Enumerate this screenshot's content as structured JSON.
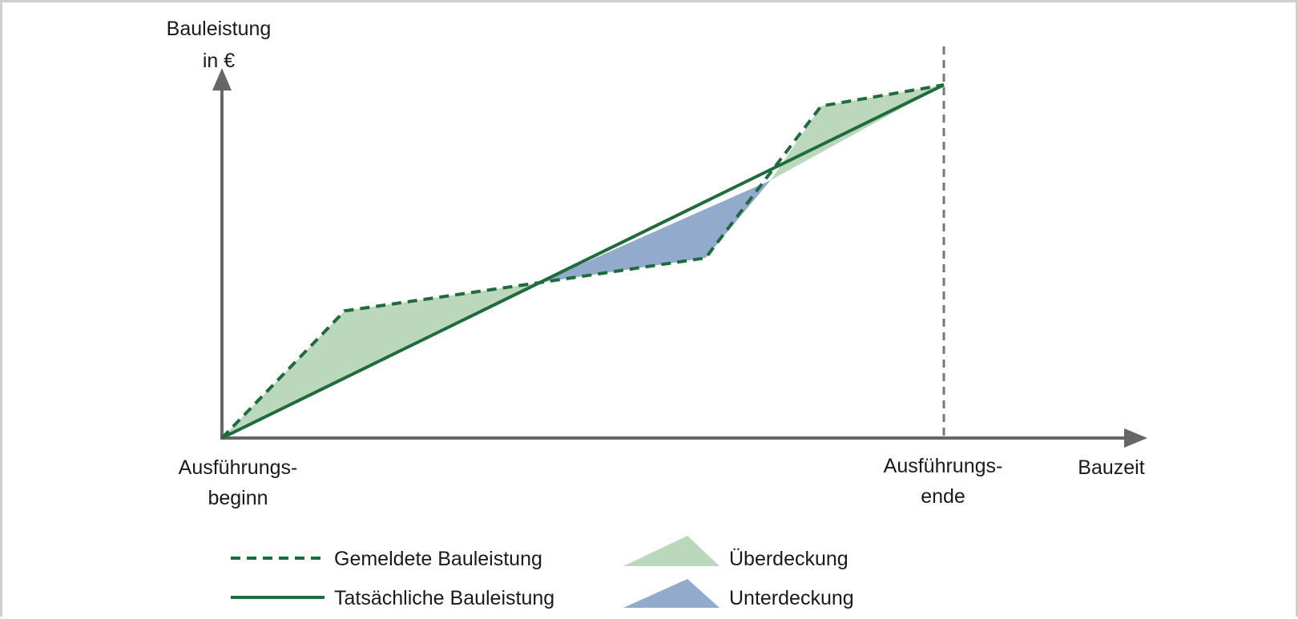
{
  "chart_data": {
    "type": "line",
    "ylabel_line1": "Bauleistung",
    "ylabel_line2": "in €",
    "xlabel": "Bauzeit",
    "start_label_line1": "Ausführungs-",
    "start_label_line2": "beginn",
    "end_label_line1": "Ausführungs-",
    "end_label_line2": "ende",
    "xlim": [
      0,
      100
    ],
    "ylim": [
      0,
      100
    ],
    "series": [
      {
        "name": "Gemeldete Bauleistung",
        "style": "dashed",
        "x": [
          0,
          17,
          44,
          67,
          83,
          100
        ],
        "y": [
          0,
          36,
          44,
          51,
          94,
          100
        ]
      },
      {
        "name": "Tatsächliche Bauleistung",
        "style": "solid",
        "x": [
          0,
          100
        ],
        "y": [
          0,
          100
        ]
      }
    ],
    "areas": [
      {
        "name": "Überdeckung",
        "color": "#bcd8bc",
        "polygon": [
          [
            0,
            0
          ],
          [
            17,
            36
          ],
          [
            44,
            44
          ]
        ]
      },
      {
        "name": "Unterdeckung",
        "color": "#92abcc",
        "polygon": [
          [
            44,
            44
          ],
          [
            67,
            51
          ],
          [
            76,
            73
          ]
        ]
      },
      {
        "name": "Überdeckung",
        "color": "#bcd8bc",
        "polygon": [
          [
            76,
            73
          ],
          [
            83,
            94
          ],
          [
            100,
            100
          ]
        ]
      }
    ],
    "legend": {
      "dashed_label": "Gemeldete Bauleistung",
      "solid_label": "Tatsächliche Bauleistung",
      "over_label": "Überdeckung",
      "under_label": "Unterdeckung",
      "placement": "bottom"
    },
    "colors": {
      "line": "#1f6b3e",
      "axis": "#666666",
      "over_fill": "#bcd8bc",
      "under_fill": "#92abcc"
    }
  }
}
